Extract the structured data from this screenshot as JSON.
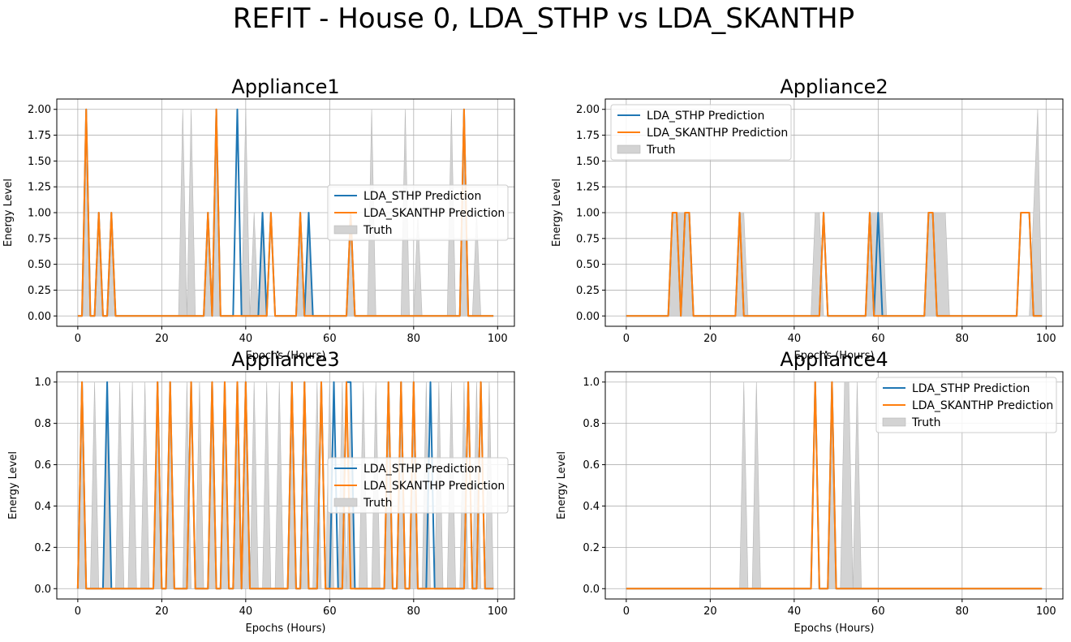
{
  "figure": {
    "title": "REFIT - House 0, LDA_STHP vs LDA_SKANTHP",
    "colors": {
      "sthp": "#1f77b4",
      "skanthp": "#ff7f0e",
      "truth_fill": "#d3d3d3",
      "truth_edge": "#b8b8b8",
      "grid": "#b0b0b0"
    }
  },
  "chart_data": [
    {
      "type": "line",
      "title": "Appliance1",
      "xlabel": "Epochs (Hours)",
      "ylabel": "Energy Level",
      "xlim": [
        -5,
        104
      ],
      "ylim": [
        -0.1,
        2.1
      ],
      "xticks": [
        0,
        20,
        40,
        60,
        80,
        100
      ],
      "yticks": [
        0.0,
        0.25,
        0.5,
        0.75,
        1.0,
        1.25,
        1.5,
        1.75,
        2.0
      ],
      "ytick_labels": [
        "0.00",
        "0.25",
        "0.50",
        "0.75",
        "1.00",
        "1.25",
        "1.50",
        "1.75",
        "2.00"
      ],
      "grid": true,
      "legend_position": "center-right",
      "legend": [
        "LDA_STHP Prediction",
        "LDA_SKANTHP Prediction",
        "Truth"
      ],
      "x_range": [
        0,
        99
      ],
      "series": [
        {
          "name": "LDA_STHP Prediction",
          "spikes": [
            [
              2,
              2
            ],
            [
              5,
              1
            ],
            [
              8,
              1
            ],
            [
              31,
              1
            ],
            [
              33,
              2
            ],
            [
              38,
              2
            ],
            [
              44,
              1
            ],
            [
              46,
              1
            ],
            [
              53,
              1
            ],
            [
              55,
              1
            ],
            [
              65,
              1
            ],
            [
              92,
              2
            ]
          ]
        },
        {
          "name": "LDA_SKANTHP Prediction",
          "spikes": [
            [
              2,
              2
            ],
            [
              5,
              1
            ],
            [
              8,
              1
            ],
            [
              31,
              1
            ],
            [
              33,
              2
            ],
            [
              46,
              1
            ],
            [
              53,
              1
            ],
            [
              65,
              1
            ],
            [
              92,
              2
            ]
          ]
        },
        {
          "name": "Truth",
          "spikes": [
            [
              2,
              2
            ],
            [
              5,
              1
            ],
            [
              8,
              1
            ],
            [
              25,
              2
            ],
            [
              27,
              2
            ],
            [
              31,
              1
            ],
            [
              33,
              2
            ],
            [
              40,
              2
            ],
            [
              42,
              1
            ],
            [
              44,
              1
            ],
            [
              53,
              1
            ],
            [
              55,
              1
            ],
            [
              65,
              1
            ],
            [
              70,
              2
            ],
            [
              78,
              2
            ],
            [
              81,
              1
            ],
            [
              89,
              2
            ],
            [
              92,
              2
            ],
            [
              95,
              1
            ]
          ]
        }
      ]
    },
    {
      "type": "line",
      "title": "Appliance2",
      "xlabel": "Epochs (Hours)",
      "ylabel": "Energy Level",
      "xlim": [
        -5,
        104
      ],
      "ylim": [
        -0.1,
        2.1
      ],
      "xticks": [
        0,
        20,
        40,
        60,
        80,
        100
      ],
      "yticks": [
        0.0,
        0.25,
        0.5,
        0.75,
        1.0,
        1.25,
        1.5,
        1.75,
        2.0
      ],
      "ytick_labels": [
        "0.00",
        "0.25",
        "0.50",
        "0.75",
        "1.00",
        "1.25",
        "1.50",
        "1.75",
        "2.00"
      ],
      "grid": true,
      "legend_position": "upper-left",
      "legend": [
        "LDA_STHP Prediction",
        "LDA_SKANTHP Prediction",
        "Truth"
      ],
      "x_range": [
        0,
        99
      ],
      "series": [
        {
          "name": "LDA_STHP Prediction",
          "spikes": [
            [
              11,
              1
            ],
            [
              12,
              1
            ],
            [
              14,
              1
            ],
            [
              15,
              1
            ],
            [
              27,
              1
            ],
            [
              47,
              1
            ],
            [
              58,
              1
            ],
            [
              60,
              1
            ],
            [
              72,
              1
            ],
            [
              73,
              1
            ],
            [
              94,
              1
            ],
            [
              95,
              1
            ],
            [
              96,
              1
            ]
          ]
        },
        {
          "name": "LDA_SKANTHP Prediction",
          "spikes": [
            [
              11,
              1
            ],
            [
              12,
              1
            ],
            [
              14,
              1
            ],
            [
              15,
              1
            ],
            [
              27,
              1
            ],
            [
              47,
              1
            ],
            [
              58,
              1
            ],
            [
              72,
              1
            ],
            [
              73,
              1
            ],
            [
              94,
              1
            ],
            [
              95,
              1
            ],
            [
              96,
              1
            ]
          ]
        },
        {
          "name": "Truth",
          "spikes": [
            [
              11,
              1
            ],
            [
              12,
              1
            ],
            [
              13,
              1
            ],
            [
              14,
              1
            ],
            [
              15,
              1
            ],
            [
              27,
              1
            ],
            [
              28,
              1
            ],
            [
              45,
              1
            ],
            [
              46,
              1
            ],
            [
              58,
              1
            ],
            [
              59,
              1
            ],
            [
              60,
              1
            ],
            [
              61,
              1
            ],
            [
              72,
              1
            ],
            [
              73,
              1
            ],
            [
              74,
              1
            ],
            [
              75,
              1
            ],
            [
              76,
              1
            ],
            [
              97,
              1
            ],
            [
              98,
              2
            ]
          ]
        }
      ]
    },
    {
      "type": "line",
      "title": "Appliance3",
      "xlabel": "Epochs (Hours)",
      "ylabel": "Energy Level",
      "xlim": [
        -5,
        104
      ],
      "ylim": [
        -0.05,
        1.05
      ],
      "xticks": [
        0,
        20,
        40,
        60,
        80,
        100
      ],
      "yticks": [
        0.0,
        0.2,
        0.4,
        0.6,
        0.8,
        1.0
      ],
      "ytick_labels": [
        "0.0",
        "0.2",
        "0.4",
        "0.6",
        "0.8",
        "1.0"
      ],
      "grid": true,
      "legend_position": "center-right",
      "legend": [
        "LDA_STHP Prediction",
        "LDA_SKANTHP Prediction",
        "Truth"
      ],
      "x_range": [
        0,
        99
      ],
      "series": [
        {
          "name": "LDA_STHP Prediction",
          "spikes": [
            [
              1,
              1
            ],
            [
              7,
              1
            ],
            [
              19,
              1
            ],
            [
              22,
              1
            ],
            [
              27,
              1
            ],
            [
              32,
              1
            ],
            [
              35,
              1
            ],
            [
              38,
              1
            ],
            [
              40,
              1
            ],
            [
              51,
              1
            ],
            [
              54,
              1
            ],
            [
              58,
              1
            ],
            [
              61,
              1
            ],
            [
              64,
              1
            ],
            [
              65,
              1
            ],
            [
              74,
              1
            ],
            [
              77,
              1
            ],
            [
              80,
              1
            ],
            [
              84,
              1
            ],
            [
              93,
              1
            ],
            [
              96,
              1
            ]
          ]
        },
        {
          "name": "LDA_SKANTHP Prediction",
          "spikes": [
            [
              1,
              1
            ],
            [
              19,
              1
            ],
            [
              22,
              1
            ],
            [
              27,
              1
            ],
            [
              32,
              1
            ],
            [
              35,
              1
            ],
            [
              38,
              1
            ],
            [
              40,
              1
            ],
            [
              51,
              1
            ],
            [
              54,
              1
            ],
            [
              58,
              1
            ],
            [
              64,
              1
            ],
            [
              74,
              1
            ],
            [
              77,
              1
            ],
            [
              80,
              1
            ],
            [
              93,
              1
            ],
            [
              96,
              1
            ]
          ]
        },
        {
          "name": "Truth",
          "spikes": [
            [
              1,
              1
            ],
            [
              4,
              1
            ],
            [
              7,
              1
            ],
            [
              10,
              1
            ],
            [
              13,
              1
            ],
            [
              16,
              1
            ],
            [
              19,
              1
            ],
            [
              22,
              1
            ],
            [
              26,
              1
            ],
            [
              29,
              1
            ],
            [
              32,
              1
            ],
            [
              35,
              1
            ],
            [
              38,
              1
            ],
            [
              40,
              1
            ],
            [
              42,
              1
            ],
            [
              45,
              1
            ],
            [
              48,
              1
            ],
            [
              51,
              1
            ],
            [
              54,
              1
            ],
            [
              57,
              1
            ],
            [
              60,
              1
            ],
            [
              63,
              1
            ],
            [
              65,
              1
            ],
            [
              68,
              1
            ],
            [
              71,
              1
            ],
            [
              74,
              1
            ],
            [
              77,
              1
            ],
            [
              80,
              1
            ],
            [
              83,
              1
            ],
            [
              86,
              1
            ],
            [
              89,
              1
            ],
            [
              92,
              1
            ],
            [
              95,
              1
            ],
            [
              98,
              1
            ]
          ]
        }
      ]
    },
    {
      "type": "line",
      "title": "Appliance4",
      "xlabel": "Epochs (Hours)",
      "ylabel": "Energy Level",
      "xlim": [
        -5,
        104
      ],
      "ylim": [
        -0.05,
        1.05
      ],
      "xticks": [
        0,
        20,
        40,
        60,
        80,
        100
      ],
      "yticks": [
        0.0,
        0.2,
        0.4,
        0.6,
        0.8,
        1.0
      ],
      "ytick_labels": [
        "0.0",
        "0.2",
        "0.4",
        "0.6",
        "0.8",
        "1.0"
      ],
      "grid": true,
      "legend_position": "upper-right",
      "legend": [
        "LDA_STHP Prediction",
        "LDA_SKANTHP Prediction",
        "Truth"
      ],
      "x_range": [
        0,
        99
      ],
      "series": [
        {
          "name": "LDA_STHP Prediction",
          "spikes": [
            [
              45,
              1
            ],
            [
              49,
              1
            ]
          ]
        },
        {
          "name": "LDA_SKANTHP Prediction",
          "spikes": [
            [
              45,
              1
            ],
            [
              49,
              1
            ]
          ]
        },
        {
          "name": "Truth",
          "spikes": [
            [
              28,
              1
            ],
            [
              31,
              1
            ],
            [
              49,
              1
            ],
            [
              52,
              1
            ],
            [
              53,
              1
            ],
            [
              55,
              1
            ]
          ]
        }
      ]
    }
  ]
}
